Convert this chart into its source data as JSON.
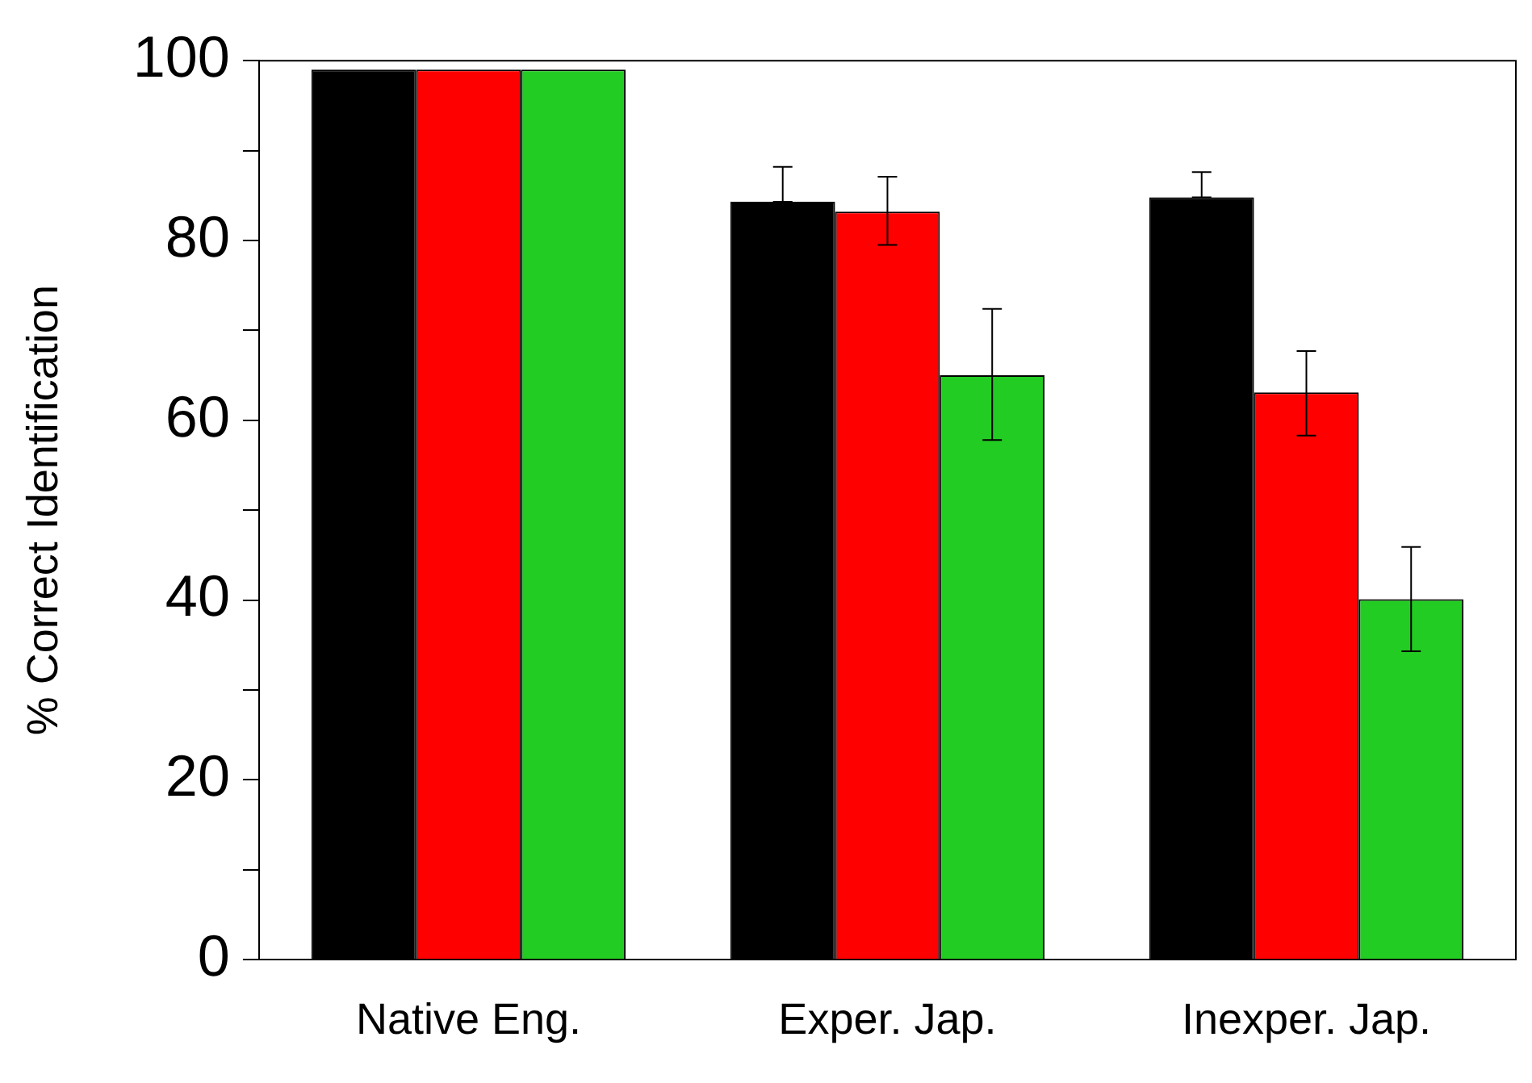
{
  "chart_data": {
    "type": "bar",
    "ylabel": "% Correct Identification",
    "categories": [
      "Native Eng.",
      "Exper. Jap.",
      "Inexper. Jap."
    ],
    "series": [
      {
        "color": "#000000",
        "values": [
          99,
          84.3,
          84.8
        ],
        "errors": [
          null,
          [
            84.3,
            88.2
          ],
          [
            84.8,
            87.6
          ]
        ]
      },
      {
        "color": "#ff0000",
        "values": [
          99,
          83.2,
          63.1
        ],
        "errors": [
          null,
          [
            79.5,
            87.1
          ],
          [
            58.3,
            67.7
          ]
        ]
      },
      {
        "color": "#22cc22",
        "values": [
          99,
          65,
          40.1
        ],
        "errors": [
          null,
          [
            57.8,
            72.4
          ],
          [
            34.3,
            45.9
          ]
        ]
      }
    ],
    "ylim": [
      0,
      100
    ],
    "yticks": [
      0,
      {
        "value": 10,
        "label": null
      },
      20,
      {
        "value": 30,
        "label": null
      },
      40,
      {
        "value": 50,
        "label": null
      },
      60,
      {
        "value": 70,
        "label": null
      },
      80,
      {
        "value": 90,
        "label": null
      },
      100
    ],
    "grid": false,
    "legend": false
  }
}
